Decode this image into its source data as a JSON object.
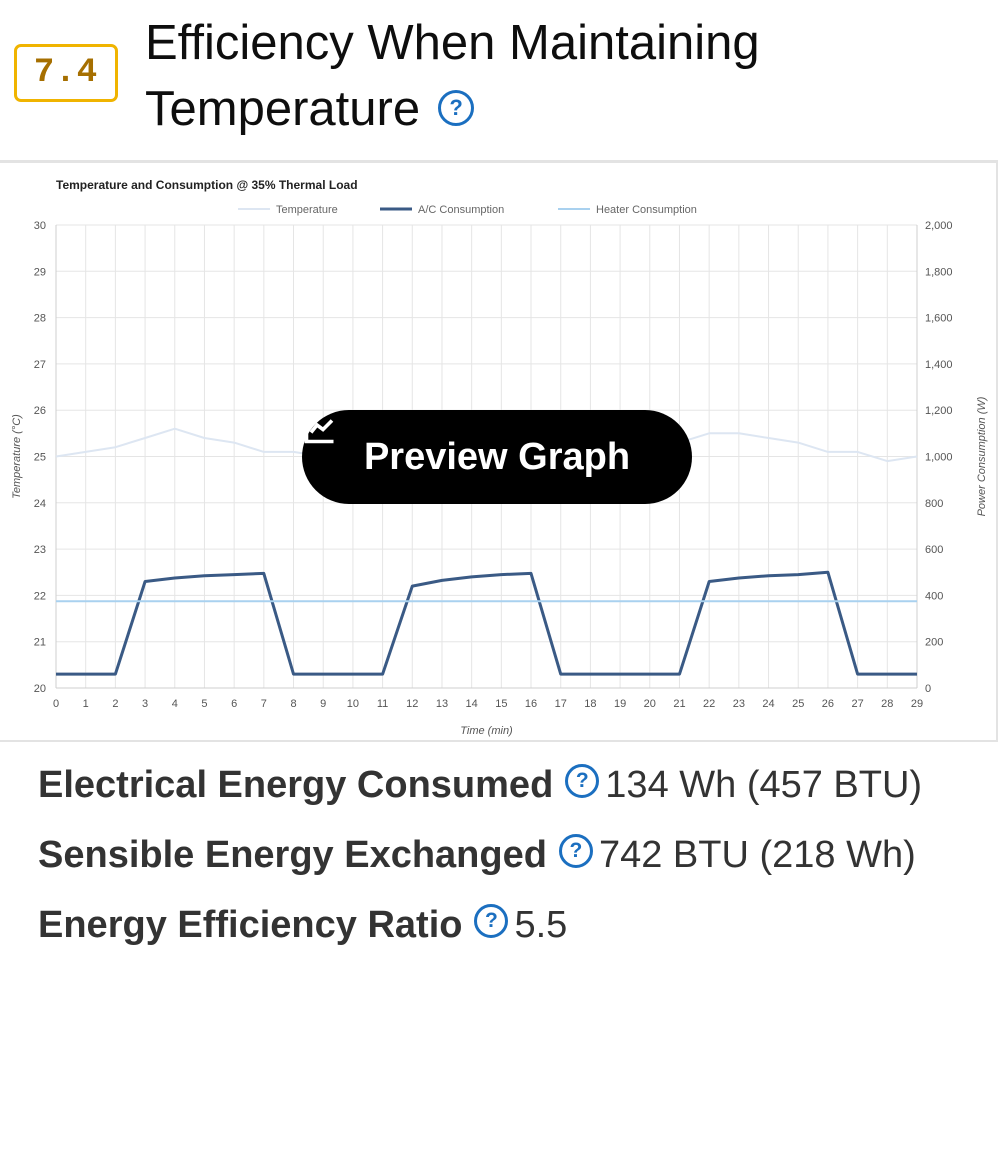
{
  "section": {
    "number": "7.4",
    "title": "Efficiency When Maintaining Temperature",
    "help": "?"
  },
  "preview_button": {
    "label": "Preview Graph",
    "icon": "line-chart-icon"
  },
  "stats": [
    {
      "label": "Electrical Energy Consumed",
      "help": "?",
      "value": "134 Wh (457 BTU)"
    },
    {
      "label": "Sensible Energy Exchanged",
      "help": "?",
      "value": "742 BTU (218 Wh)"
    },
    {
      "label": "Energy Efficiency Ratio",
      "help": "?",
      "value": "5.5"
    }
  ],
  "chart_data": {
    "type": "line",
    "title": "Temperature and Consumption @ 35% Thermal Load",
    "xlabel": "Time (min)",
    "ylabel_left": "Temperature (°C)",
    "ylabel_right": "Power Consumption (W)",
    "x": [
      0,
      1,
      2,
      3,
      4,
      5,
      6,
      7,
      8,
      9,
      10,
      11,
      12,
      13,
      14,
      15,
      16,
      17,
      18,
      19,
      20,
      21,
      22,
      23,
      24,
      25,
      26,
      27,
      28,
      29
    ],
    "y_left_range": [
      20,
      30
    ],
    "y_right_range": [
      0,
      2000
    ],
    "y_left_ticks": [
      "20",
      "21",
      "22",
      "23",
      "24",
      "25",
      "26",
      "27",
      "28",
      "29",
      "30"
    ],
    "y_right_ticks": [
      "0",
      "200",
      "400",
      "600",
      "800",
      "1,000",
      "1,200",
      "1,400",
      "1,600",
      "1,800",
      "2,000"
    ],
    "legend_position": "top",
    "grid": true,
    "series": [
      {
        "name": "Temperature",
        "axis": "left",
        "color": "#dde6f2",
        "values": [
          25.0,
          25.1,
          25.2,
          25.4,
          25.6,
          25.4,
          25.3,
          25.1,
          25.1,
          25.0,
          25.0,
          25.1,
          25.3,
          25.5,
          25.6,
          25.4,
          25.3,
          25.1,
          25.0,
          25.0,
          25.1,
          25.3,
          25.5,
          25.5,
          25.4,
          25.3,
          25.1,
          25.1,
          24.9,
          25.0
        ]
      },
      {
        "name": "A/C Consumption",
        "axis": "right",
        "color": "#3a5a85",
        "values": [
          60,
          60,
          60,
          460,
          475,
          485,
          490,
          495,
          60,
          60,
          60,
          60,
          440,
          465,
          480,
          490,
          495,
          60,
          60,
          60,
          60,
          60,
          460,
          475,
          485,
          490,
          500,
          60,
          60,
          60
        ]
      },
      {
        "name": "Heater Consumption",
        "axis": "right",
        "color": "#a9d1ef",
        "values": [
          375,
          375,
          375,
          375,
          375,
          375,
          375,
          375,
          375,
          375,
          375,
          375,
          375,
          375,
          375,
          375,
          375,
          375,
          375,
          375,
          375,
          375,
          375,
          375,
          375,
          375,
          375,
          375,
          375,
          375
        ]
      }
    ]
  }
}
